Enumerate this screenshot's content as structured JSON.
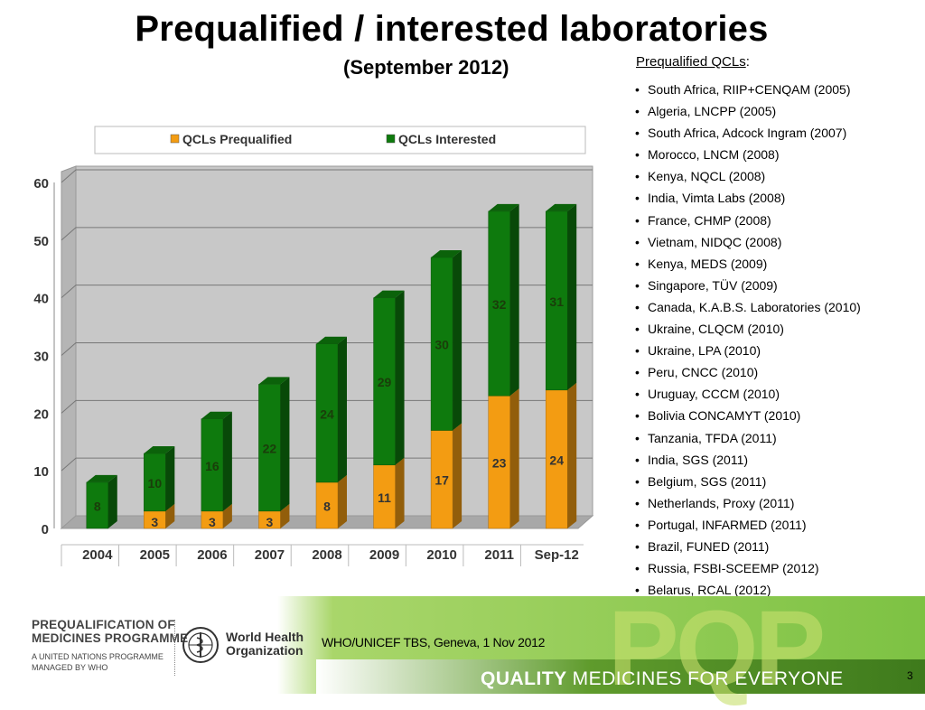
{
  "title": "Prequalified / interested laboratories",
  "subtitle": "(September 2012)",
  "list": {
    "heading": "Prequalified QCLs",
    "items": [
      "South Africa, RIIP+CENQAM (2005)",
      "Algeria, LNCPP (2005)",
      "South Africa, Adcock Ingram (2007)",
      "Morocco, LNCM (2008)",
      "Kenya, NQCL (2008)",
      "India, Vimta Labs (2008)",
      "France, CHMP (2008)",
      "Vietnam, NIDQC (2008)",
      "Kenya, MEDS (2009)",
      "Singapore, TÜV (2009)",
      "Canada, K.A.B.S. Laboratories (2010)",
      "Ukraine, CLQCM (2010)",
      "Ukraine, LPA (2010)",
      "Peru, CNCC (2010)",
      "Uruguay, CCCM (2010)",
      "Bolivia CONCAMYT (2010)",
      "Tanzania, TFDA (2011)",
      "India, SGS (2011)",
      "Belgium, SGS (2011)",
      "Netherlands, Proxy (2011)",
      "Portugal, INFARMED (2011)",
      "Brazil, FUNED (2011)",
      "Russia, FSBI-SCEEMP (2012)",
      "Belarus, RCAL (2012)"
    ]
  },
  "chart_data": {
    "type": "bar",
    "stacked": true,
    "categories": [
      "2004",
      "2005",
      "2006",
      "2007",
      "2008",
      "2009",
      "2010",
      "2011",
      "Sep-12"
    ],
    "series": [
      {
        "name": "QCLs Prequalified",
        "color": "#F39C12",
        "values": [
          0,
          3,
          3,
          3,
          8,
          11,
          17,
          23,
          24
        ]
      },
      {
        "name": "QCLs Interested",
        "color": "#0E7A0D",
        "values": [
          8,
          10,
          16,
          22,
          24,
          29,
          30,
          32,
          31
        ]
      }
    ],
    "yticks": [
      "0",
      "10",
      "20",
      "30",
      "40",
      "50",
      "60"
    ],
    "ylim": [
      0,
      60
    ],
    "legend_position": "top"
  },
  "footer": {
    "programme_line1": "PREQUALIFICATION OF",
    "programme_line2": "MEDICINES PROGRAMME",
    "programme_sub1": "A UNITED NATIONS PROGRAMME",
    "programme_sub2": "MANAGED BY WHO",
    "who_line1": "World Health",
    "who_line2": "Organization",
    "event": "WHO/UNICEF TBS, Geneva, 1 Nov 2012",
    "tagline_bold": "QUALITY",
    "tagline_rest": "MEDICINES FOR EVERYONE",
    "pqp": "PQP",
    "page_number": "3"
  },
  "colors": {
    "green_band": "#7DC243",
    "footer_dark": "#5a8a2a",
    "plot_bg": "#c8c8c8"
  }
}
